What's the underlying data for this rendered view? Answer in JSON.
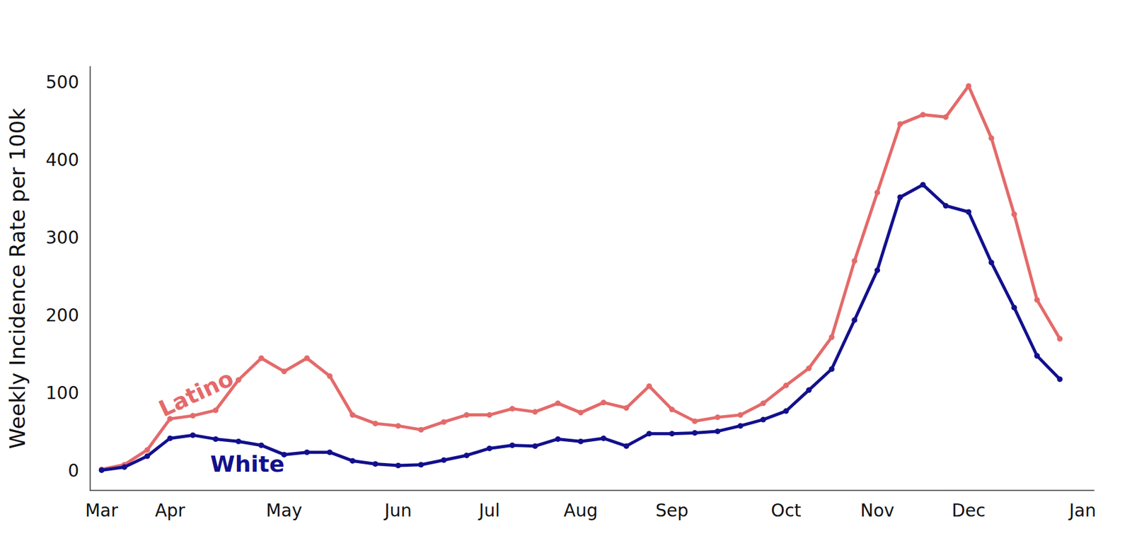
{
  "chart_data": {
    "type": "line",
    "y_label": "Weekly Incidence Rate per 100k",
    "categories": [
      "Mar",
      null,
      null,
      "Apr",
      null,
      null,
      null,
      null,
      "May",
      null,
      null,
      null,
      null,
      "Jun",
      null,
      null,
      null,
      "Jul",
      null,
      null,
      null,
      "Aug",
      null,
      null,
      null,
      "Sep",
      null,
      null,
      null,
      null,
      "Oct",
      null,
      null,
      null,
      "Nov",
      null,
      null,
      null,
      "Dec",
      null,
      null,
      null,
      null,
      "Jan"
    ],
    "series": [
      {
        "name": "Latino",
        "color": "#e46a6a",
        "values": [
          2,
          8,
          27,
          67,
          71,
          78,
          117,
          145,
          128,
          145,
          122,
          72,
          61,
          58,
          53,
          63,
          72,
          72,
          80,
          76,
          87,
          75,
          88,
          81,
          109,
          79,
          64,
          69,
          72,
          87,
          110,
          132,
          172,
          270,
          358,
          446,
          458,
          455,
          495,
          428,
          330,
          220,
          170,
          null
        ]
      },
      {
        "name": "White",
        "color": "#12108c",
        "values": [
          1,
          5,
          19,
          42,
          46,
          41,
          38,
          33,
          21,
          24,
          24,
          13,
          9,
          7,
          8,
          14,
          20,
          29,
          33,
          32,
          41,
          38,
          42,
          32,
          48,
          48,
          49,
          51,
          58,
          66,
          77,
          104,
          131,
          194,
          258,
          352,
          368,
          341,
          333,
          268,
          210,
          148,
          118,
          null
        ]
      }
    ],
    "ylim": [
      -25,
      520
    ],
    "yticks": [
      0,
      100,
      200,
      300,
      400,
      500
    ],
    "grid": false,
    "marker": "circle"
  }
}
